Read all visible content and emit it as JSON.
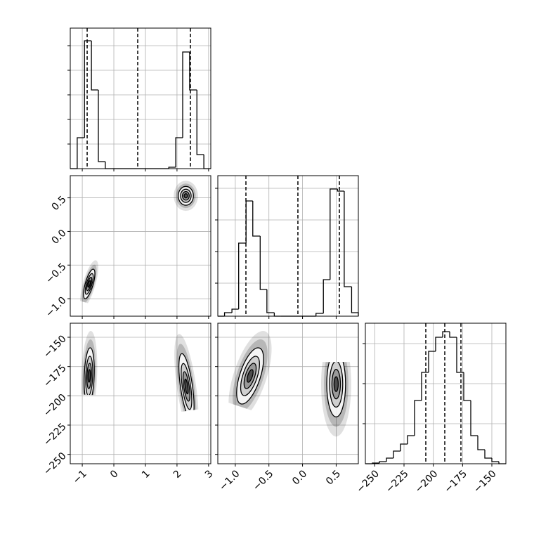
{
  "chart_data": {
    "type": "corner",
    "grid": true,
    "params": [
      {
        "lim": [
          -1.38,
          3.07
        ],
        "ticks": [
          {
            "value": -1,
            "label": "−1"
          },
          0,
          1,
          2,
          3
        ],
        "hist": {
          "bins": [
            -1.38,
            -1.16,
            -0.93,
            -0.71,
            -0.49,
            -0.27,
            -0.04,
            0.18,
            0.4,
            0.62,
            0.85,
            1.07,
            1.29,
            1.51,
            1.74,
            1.96,
            2.18,
            2.4,
            2.63,
            2.85,
            3.07
          ],
          "values": [
            0,
            44,
            182,
            112,
            10,
            0,
            0,
            0,
            0,
            0,
            0,
            0,
            0,
            0,
            2,
            44,
            166,
            112,
            20,
            0
          ],
          "ylim": [
            0,
            200
          ],
          "yticks": [
            35,
            70,
            105,
            140,
            175
          ]
        },
        "quantiles": [
          -0.845,
          0.756,
          2.425
        ]
      },
      {
        "lim": [
          -1.26,
          0.83
        ],
        "ticks": [
          {
            "value": -1.0,
            "label": "−1.0"
          },
          {
            "value": -0.5,
            "label": "−0.5"
          },
          {
            "value": 0.0,
            "label": "0.0"
          },
          0.5
        ],
        "hist": {
          "bins": [
            -1.26,
            -1.16,
            -1.05,
            -0.95,
            -0.84,
            -0.74,
            -0.63,
            -0.53,
            -0.42,
            -0.32,
            -0.21,
            -0.11,
            0.0,
            0.1,
            0.2,
            0.31,
            0.41,
            0.52,
            0.62,
            0.73,
            0.83
          ],
          "values": [
            0,
            5,
            10,
            104,
            164,
            114,
            38,
            5,
            0,
            0,
            0,
            0,
            0,
            0,
            4,
            52,
            181,
            178,
            42,
            5
          ],
          "ylim": [
            0,
            200
          ],
          "yticks": [
            47,
            92,
            137,
            182
          ]
        },
        "quantiles": [
          -0.842,
          -0.069,
          0.548
        ]
      },
      {
        "lim": [
          -258,
          -138
        ],
        "ticks": [
          {
            "value": -250,
            "label": "−250"
          },
          {
            "value": -225,
            "label": "−225"
          },
          {
            "value": -200,
            "label": "−200"
          },
          {
            "value": -175,
            "label": "−175"
          },
          {
            "value": -150,
            "label": "−150"
          }
        ],
        "hist": {
          "bins": [
            -258,
            -252,
            -246,
            -240,
            -234,
            -228,
            -222,
            -216,
            -210,
            -204,
            -198,
            -192,
            -186,
            -180,
            -174,
            -168,
            -162,
            -156,
            -150,
            -144,
            -138
          ],
          "values": [
            0,
            1,
            3,
            8,
            18,
            28,
            40,
            90,
            130,
            160,
            180,
            188,
            180,
            130,
            90,
            40,
            20,
            8,
            3,
            0
          ],
          "ylim": [
            0,
            200
          ],
          "yticks": [
            57,
            114,
            171
          ]
        },
        "quantiles": [
          -206.4,
          -190.2,
          -176.4
        ]
      }
    ],
    "pairs": [
      {
        "clusters": [
          {
            "x": -0.78,
            "y": -0.78,
            "sx": 0.09,
            "sy": 0.11,
            "rho": 0.7
          },
          {
            "x": 2.28,
            "y": 0.53,
            "sx": 0.12,
            "sy": 0.07,
            "rho": 0
          }
        ]
      },
      {
        "clusters": [
          {
            "x": -0.78,
            "y": -183,
            "sx": 0.08,
            "sy": 12,
            "rho": 0.2
          },
          {
            "x": 2.3,
            "y": -192,
            "sx": 0.12,
            "sy": 14,
            "rho": -0.6
          }
        ]
      },
      {
        "clusters": [
          {
            "x": -0.78,
            "y": -183,
            "sx": 0.1,
            "sy": 12,
            "rho": 0.6
          },
          {
            "x": 0.5,
            "y": -190,
            "sx": 0.07,
            "sy": 14,
            "rho": 0
          }
        ]
      }
    ]
  }
}
